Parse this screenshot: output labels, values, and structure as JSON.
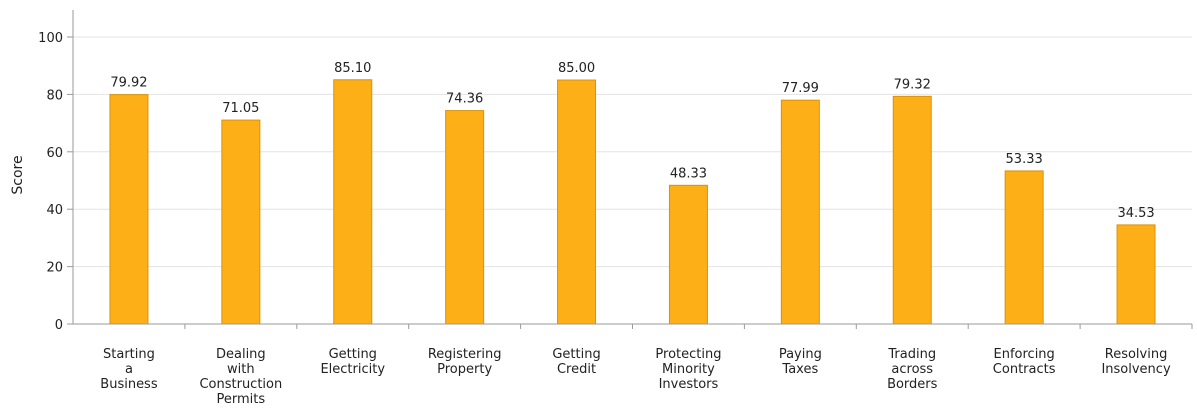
{
  "chart_data": {
    "type": "bar",
    "categories": [
      "Starting a Business",
      "Dealing with Construction Permits",
      "Getting Electricity",
      "Registering Property",
      "Getting Credit",
      "Protecting Minority Investors",
      "Paying Taxes",
      "Trading across Borders",
      "Enforcing Contracts",
      "Resolving Insolvency"
    ],
    "category_label_lines": [
      [
        "Starting",
        "a",
        "Business"
      ],
      [
        "Dealing",
        "with",
        "Construction",
        "Permits"
      ],
      [
        "Getting",
        "Electricity"
      ],
      [
        "Registering",
        "Property"
      ],
      [
        "Getting",
        "Credit"
      ],
      [
        "Protecting",
        "Minority",
        "Investors"
      ],
      [
        "Paying",
        "Taxes"
      ],
      [
        "Trading",
        "across",
        "Borders"
      ],
      [
        "Enforcing",
        "Contracts"
      ],
      [
        "Resolving",
        "Insolvency"
      ]
    ],
    "values": [
      79.92,
      71.05,
      85.1,
      74.36,
      85.0,
      48.33,
      77.99,
      79.32,
      53.33,
      34.53
    ],
    "value_labels": [
      "79.92",
      "71.05",
      "85.10",
      "74.36",
      "85.00",
      "48.33",
      "77.99",
      "79.32",
      "53.33",
      "34.53"
    ],
    "title": "",
    "xlabel": "",
    "ylabel": "Score",
    "ylim": [
      0,
      100
    ],
    "yticks": [
      "0",
      "20",
      "40",
      "60",
      "80",
      "100"
    ],
    "grid": true,
    "legend": "none",
    "colors": {
      "bar_fill": "#FCAF17",
      "bar_stroke": "#D9930A"
    }
  }
}
